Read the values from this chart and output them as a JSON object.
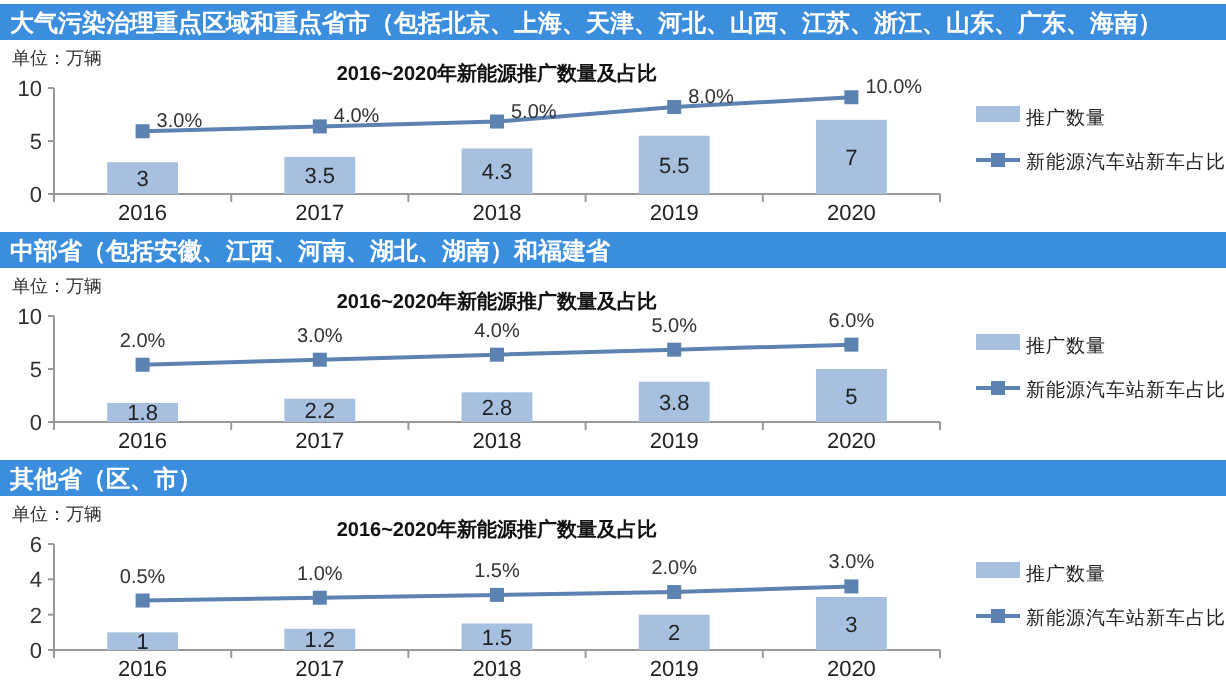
{
  "chart_data": [
    {
      "type": "bar",
      "title": "大气污染治理重点区域和重点省市（包括北京、上海、天津、河北、山西、江苏、浙江、山东、广东、海南）",
      "subtitle": "2016~2020年新能源推广数量及占比",
      "ylabel": "单位：万辆",
      "categories": [
        "2016",
        "2017",
        "2018",
        "2019",
        "2020"
      ],
      "ylim": [
        0,
        10
      ],
      "yticks": [
        0,
        5,
        10
      ],
      "y2lim": [
        -9.9,
        11.9
      ],
      "legend": "right",
      "data_labels": true,
      "grid": false,
      "series": [
        {
          "name": "推广数量",
          "color": "#a7c0e0",
          "values": [
            3,
            3.5,
            4.3,
            5.5,
            7
          ]
        },
        {
          "name": "新能源汽车站新车占比",
          "type": "line",
          "axis": "y2",
          "color": "#5b82b0",
          "marker": "square",
          "values": [
            3,
            4,
            5,
            8,
            10
          ],
          "value_labels": [
            "3.0%",
            "4.0%",
            "5.0%",
            "8.0%",
            "10.0%"
          ]
        }
      ]
    },
    {
      "type": "bar",
      "title": "中部省（包括安徽、江西、河南、湖北、湖南）和福建省",
      "subtitle": "2016~2020年新能源推广数量及占比",
      "ylabel": "单位：万辆",
      "categories": [
        "2016",
        "2017",
        "2018",
        "2019",
        "2020"
      ],
      "ylim": [
        0,
        10
      ],
      "yticks": [
        0,
        5,
        10
      ],
      "y2lim": [
        -9.4,
        11.7
      ],
      "legend": "right",
      "data_labels": true,
      "grid": false,
      "series": [
        {
          "name": "推广数量",
          "color": "#a7c0e0",
          "values": [
            1.8,
            2.2,
            2.8,
            3.8,
            5
          ]
        },
        {
          "name": "新能源汽车站新车占比",
          "type": "line",
          "axis": "y2",
          "color": "#5b82b0",
          "marker": "square",
          "values": [
            2,
            3,
            4,
            5,
            6
          ],
          "value_labels": [
            "2.0%",
            "3.0%",
            "4.0%",
            "5.0%",
            "6.0%"
          ]
        }
      ]
    },
    {
      "type": "bar",
      "title": "其他省（区、市）",
      "subtitle": "2016~2020年新能源推广数量及占比",
      "ylabel": "单位：万辆",
      "categories": [
        "2016",
        "2017",
        "2018",
        "2019",
        "2020"
      ],
      "ylim": [
        0,
        6
      ],
      "yticks": [
        0,
        2,
        4,
        6
      ],
      "y2lim": [
        -8.25,
        10.5
      ],
      "legend": "right",
      "data_labels": true,
      "grid": false,
      "series": [
        {
          "name": "推广数量",
          "color": "#a7c0e0",
          "values": [
            1,
            1.2,
            1.5,
            2,
            3
          ]
        },
        {
          "name": "新能源汽车站新车占比",
          "type": "line",
          "axis": "y2",
          "color": "#5b82b0",
          "marker": "square",
          "values": [
            0.5,
            1,
            1.5,
            2,
            3
          ],
          "value_labels": [
            "0.5%",
            "1.0%",
            "1.5%",
            "2.0%",
            "3.0%"
          ]
        }
      ]
    }
  ]
}
